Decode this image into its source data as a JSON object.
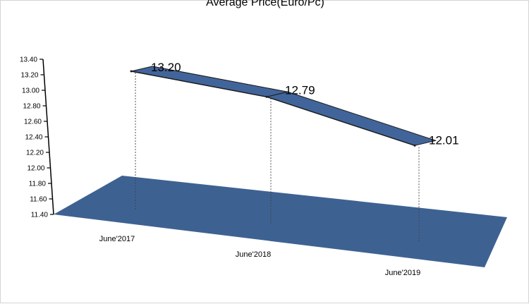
{
  "chart_data": {
    "type": "line",
    "title": "Average Price(Euro/Pc)",
    "categories": [
      "June'2017",
      "June'2018",
      "June'2019"
    ],
    "series": [
      {
        "values": [
          13.2,
          12.79,
          12.01
        ]
      }
    ],
    "data_labels": [
      "13.20",
      "12.79",
      "12.01"
    ],
    "y_ticks": [
      "11.40",
      "11.60",
      "11.80",
      "12.00",
      "12.20",
      "12.40",
      "12.60",
      "12.80",
      "13.00",
      "13.20",
      "13.40"
    ],
    "ylim": [
      11.4,
      13.4
    ],
    "grid": false,
    "legend": "none",
    "colors": {
      "series": "#41659a",
      "floor": "#3d6292",
      "axis": "#000000",
      "drop_line": "#404040"
    }
  }
}
